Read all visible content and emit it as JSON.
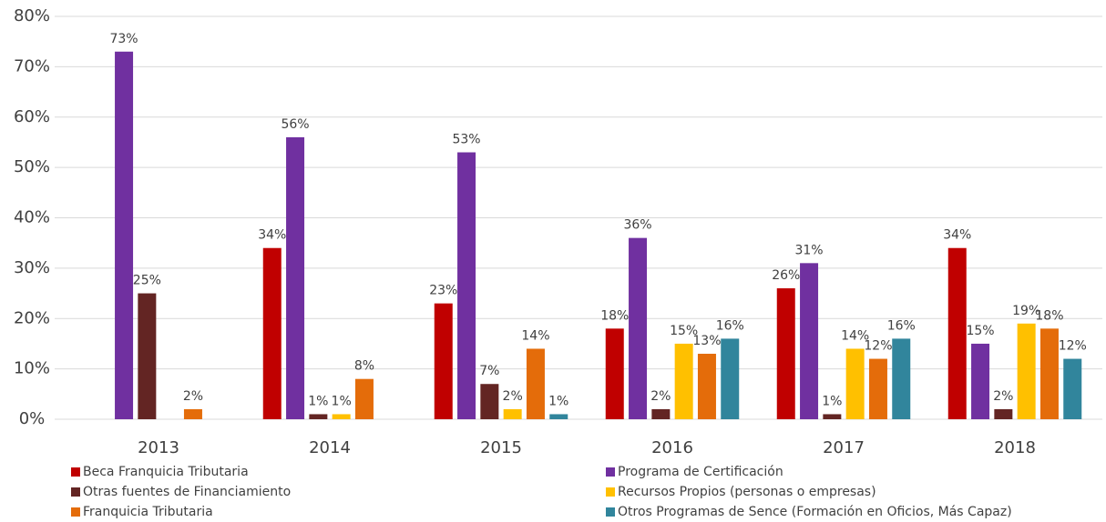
{
  "chart_data": {
    "type": "bar",
    "categories": [
      "2013",
      "2014",
      "2015",
      "2016",
      "2017",
      "2018"
    ],
    "series": [
      {
        "name": "Beca Franquicia Tributaria",
        "color": "#c00000",
        "values": [
          null,
          34,
          23,
          18,
          26,
          34
        ],
        "value_labels": [
          null,
          "34%",
          "23%",
          "18%",
          "26%",
          "34%"
        ]
      },
      {
        "name": "Programa de Certificación",
        "color": "#7030a0",
        "values": [
          73,
          56,
          53,
          36,
          31,
          15
        ],
        "value_labels": [
          "73%",
          "56%",
          "53%",
          "36%",
          "31%",
          "15%"
        ]
      },
      {
        "name": "Otras fuentes de Financiamiento",
        "color": "#632523",
        "values": [
          25,
          1,
          7,
          2,
          1,
          2
        ],
        "value_labels": [
          "25%",
          "1%",
          "7%",
          "2%",
          "1%",
          "2%"
        ]
      },
      {
        "name": "Recursos Propios (personas o empresas)",
        "color": "#ffc000",
        "values": [
          null,
          1,
          2,
          15,
          14,
          19
        ],
        "value_labels": [
          null,
          "1%",
          "2%",
          "15%",
          "14%",
          "19%"
        ]
      },
      {
        "name": "Franquicia Tributaria",
        "color": "#e46c0a",
        "values": [
          2,
          8,
          14,
          13,
          12,
          18
        ],
        "value_labels": [
          "2%",
          "8%",
          "14%",
          "13%",
          "12%",
          "18%"
        ]
      },
      {
        "name": "Otros Programas de Sence (Formación en Oficios, Más Capaz)",
        "color": "#31859c",
        "values": [
          null,
          null,
          1,
          16,
          16,
          12
        ],
        "value_labels": [
          null,
          null,
          "1%",
          "16%",
          "16%",
          "12%"
        ]
      }
    ],
    "ylim": [
      0,
      80
    ],
    "yticks": [
      {
        "value": 0,
        "label": "0%"
      },
      {
        "value": 10,
        "label": "10%"
      },
      {
        "value": 20,
        "label": "20%"
      },
      {
        "value": 30,
        "label": "30%"
      },
      {
        "value": 40,
        "label": "40%"
      },
      {
        "value": 50,
        "label": "50%"
      },
      {
        "value": 60,
        "label": "60%"
      },
      {
        "value": 70,
        "label": "70%"
      },
      {
        "value": 80,
        "label": "80%"
      }
    ],
    "grid": true
  }
}
